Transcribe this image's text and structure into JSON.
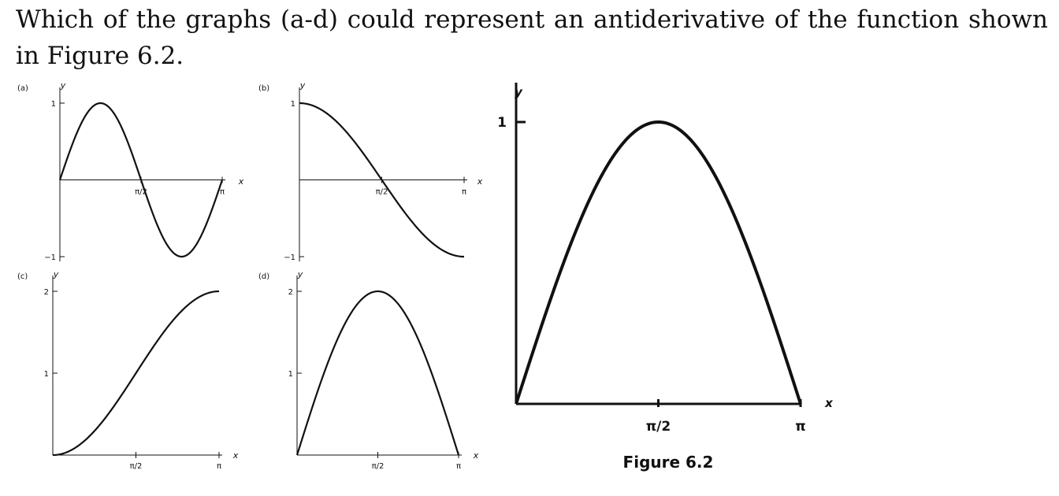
{
  "question": "Which of the graphs (a-d) could represent an antiderivative of the function shown in Figure 6.2.",
  "figure_caption": "Figure 6.2",
  "chart_data": [
    {
      "type": "line",
      "panel": "(a)",
      "ylabel": "y",
      "xlabel": "x",
      "yticks": [
        "1",
        "−1"
      ],
      "xticks": [
        "π/2",
        "π"
      ],
      "xlim": [
        0,
        3.1416
      ],
      "ylim": [
        -1,
        1
      ],
      "function": "sin(2x)",
      "x": [
        0,
        0.3927,
        0.7854,
        1.1781,
        1.5708,
        1.9635,
        2.3562,
        2.7489,
        3.1416
      ],
      "y": [
        0,
        0.707,
        1,
        0.707,
        0,
        -0.707,
        -1,
        -0.707,
        0
      ]
    },
    {
      "type": "line",
      "panel": "(b)",
      "ylabel": "y",
      "xlabel": "x",
      "yticks": [
        "1",
        "−1"
      ],
      "xticks": [
        "π/2",
        "π"
      ],
      "xlim": [
        0,
        3.1416
      ],
      "ylim": [
        -1,
        1
      ],
      "function": "cos(x)",
      "x": [
        0,
        0.7854,
        1.5708,
        2.3562,
        3.1416
      ],
      "y": [
        1,
        0.707,
        0,
        -0.707,
        -1
      ]
    },
    {
      "type": "line",
      "panel": "(c)",
      "ylabel": "y",
      "xlabel": "x",
      "yticks": [
        "2",
        "1"
      ],
      "xticks": [
        "π/2",
        "π"
      ],
      "xlim": [
        0,
        3.1416
      ],
      "ylim": [
        0,
        2
      ],
      "function": "1 - cos(x)",
      "x": [
        0,
        0.7854,
        1.5708,
        2.3562,
        3.1416
      ],
      "y": [
        0,
        0.293,
        1,
        1.707,
        2
      ]
    },
    {
      "type": "line",
      "panel": "(d)",
      "ylabel": "y",
      "xlabel": "x",
      "yticks": [
        "2",
        "1"
      ],
      "xticks": [
        "π/2",
        "π"
      ],
      "xlim": [
        0,
        3.1416
      ],
      "ylim": [
        0,
        2
      ],
      "function": "2 sin(x)",
      "x": [
        0,
        0.7854,
        1.5708,
        2.3562,
        3.1416
      ],
      "y": [
        0,
        1.414,
        2,
        1.414,
        0
      ]
    },
    {
      "type": "line",
      "panel": "Figure 6.2",
      "ylabel": "y",
      "xlabel": "x",
      "yticks": [
        "1"
      ],
      "xticks": [
        "π/2",
        "π"
      ],
      "xlim": [
        0,
        3.1416
      ],
      "ylim": [
        0,
        1
      ],
      "function": "sin(x)",
      "x": [
        0,
        0.7854,
        1.5708,
        2.3562,
        3.1416
      ],
      "y": [
        0,
        0.707,
        1,
        0.707,
        0
      ]
    }
  ]
}
